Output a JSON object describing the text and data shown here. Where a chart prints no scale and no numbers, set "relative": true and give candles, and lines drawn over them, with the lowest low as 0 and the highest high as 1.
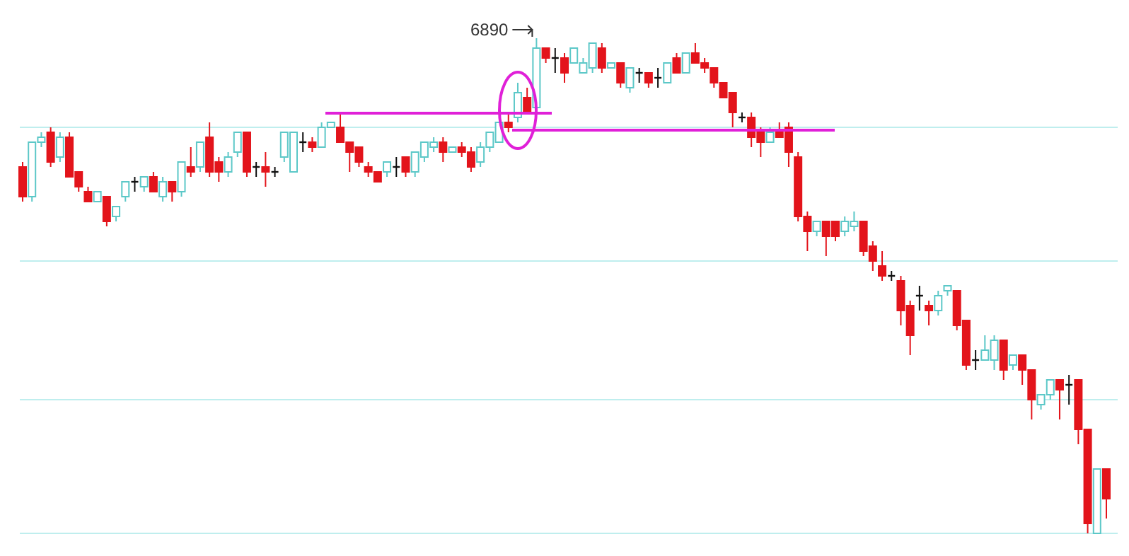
{
  "chart_data": {
    "type": "candlestick",
    "relative": true,
    "ref_lines": [
      {
        "axis": "y",
        "value": 0.82,
        "color": "#bfeeee"
      },
      {
        "axis": "y",
        "value": 0.55,
        "color": "#bfeeee"
      },
      {
        "axis": "y",
        "value": 0.27,
        "color": "#bfeeee"
      },
      {
        "axis": "y",
        "value": 0,
        "color": "#bfeeee"
      }
    ],
    "annotations": [
      "6890"
    ],
    "categories": [
      null,
      null,
      null,
      null,
      null,
      null,
      null,
      null,
      null,
      null,
      null,
      null,
      null,
      null,
      null,
      null,
      null,
      null,
      null,
      null,
      null,
      null,
      null,
      null,
      null,
      null,
      null,
      null,
      null,
      null,
      null,
      null,
      null,
      null,
      null,
      null,
      null,
      null,
      null,
      null,
      null,
      null,
      null,
      null,
      null,
      null,
      null,
      null,
      null,
      null,
      null,
      null,
      null,
      null,
      null,
      null,
      null,
      null,
      null,
      null,
      null,
      null,
      null,
      null,
      null,
      null,
      null,
      null,
      null,
      null,
      null,
      null,
      null,
      null,
      null,
      null,
      null,
      null,
      null,
      null,
      null,
      null,
      null,
      null,
      null,
      null,
      null,
      null,
      null,
      null,
      null,
      null,
      null,
      null,
      null,
      null,
      null,
      null,
      null,
      null,
      null,
      null,
      null,
      null,
      null,
      null,
      null,
      null,
      null,
      null,
      null,
      null,
      null,
      null,
      null,
      null,
      null
    ],
    "ohlc": [
      [
        0.74,
        0.75,
        0.67,
        0.68
      ],
      [
        0.68,
        0.79,
        0.67,
        0.79
      ],
      [
        0.79,
        0.81,
        0.78,
        0.8
      ],
      [
        0.81,
        0.82,
        0.74,
        0.75
      ],
      [
        0.76,
        0.81,
        0.75,
        0.8
      ],
      [
        0.8,
        0.81,
        0.72,
        0.72
      ],
      [
        0.73,
        0.73,
        0.69,
        0.7
      ],
      [
        0.69,
        0.7,
        0.67,
        0.67
      ],
      [
        0.67,
        0.69,
        0.67,
        0.69
      ],
      [
        0.68,
        0.68,
        0.62,
        0.63
      ],
      [
        0.64,
        0.66,
        0.63,
        0.66
      ],
      [
        0.68,
        0.71,
        0.67,
        0.71
      ],
      [
        0.71,
        0.72,
        0.69,
        0.71
      ],
      [
        0.7,
        0.72,
        0.69,
        0.72
      ],
      [
        0.72,
        0.73,
        0.69,
        0.69
      ],
      [
        0.68,
        0.72,
        0.67,
        0.71
      ],
      [
        0.71,
        0.71,
        0.67,
        0.69
      ],
      [
        0.69,
        0.75,
        0.68,
        0.75
      ],
      [
        0.74,
        0.78,
        0.72,
        0.73
      ],
      [
        0.74,
        0.79,
        0.73,
        0.79
      ],
      [
        0.8,
        0.83,
        0.72,
        0.73
      ],
      [
        0.75,
        0.76,
        0.71,
        0.73
      ],
      [
        0.73,
        0.77,
        0.72,
        0.76
      ],
      [
        0.77,
        0.81,
        0.76,
        0.81
      ],
      [
        0.81,
        0.81,
        0.72,
        0.73
      ],
      [
        0.74,
        0.75,
        0.72,
        0.74
      ],
      [
        0.74,
        0.77,
        0.7,
        0.73
      ],
      [
        0.73,
        0.74,
        0.72,
        0.73
      ],
      [
        0.76,
        0.81,
        0.75,
        0.81
      ],
      [
        0.73,
        0.81,
        0.73,
        0.81
      ],
      [
        0.79,
        0.81,
        0.77,
        0.79
      ],
      [
        0.79,
        0.8,
        0.77,
        0.78
      ],
      [
        0.78,
        0.83,
        0.78,
        0.82
      ],
      [
        0.82,
        0.83,
        0.82,
        0.83
      ],
      [
        0.82,
        0.85,
        0.79,
        0.79
      ],
      [
        0.79,
        0.79,
        0.73,
        0.77
      ],
      [
        0.78,
        0.78,
        0.74,
        0.75
      ],
      [
        0.74,
        0.75,
        0.72,
        0.73
      ],
      [
        0.73,
        0.73,
        0.71,
        0.71
      ],
      [
        0.73,
        0.75,
        0.72,
        0.75
      ],
      [
        0.74,
        0.76,
        0.72,
        0.74
      ],
      [
        0.76,
        0.76,
        0.72,
        0.73
      ],
      [
        0.73,
        0.77,
        0.72,
        0.77
      ],
      [
        0.76,
        0.79,
        0.75,
        0.79
      ],
      [
        0.78,
        0.8,
        0.77,
        0.79
      ],
      [
        0.79,
        0.8,
        0.75,
        0.77
      ],
      [
        0.77,
        0.78,
        0.77,
        0.78
      ],
      [
        0.78,
        0.79,
        0.76,
        0.77
      ],
      [
        0.77,
        0.78,
        0.73,
        0.74
      ],
      [
        0.75,
        0.79,
        0.74,
        0.78
      ],
      [
        0.78,
        0.81,
        0.77,
        0.81
      ],
      [
        0.79,
        0.83,
        0.79,
        0.83
      ],
      [
        0.83,
        0.85,
        0.81,
        0.82
      ],
      [
        0.84,
        0.91,
        0.83,
        0.89
      ],
      [
        0.88,
        0.9,
        0.85,
        0.85
      ],
      [
        0.86,
        1,
        0.85,
        0.98
      ],
      [
        0.98,
        0.98,
        0.95,
        0.96
      ],
      [
        0.96,
        0.98,
        0.93,
        0.96
      ],
      [
        0.96,
        0.97,
        0.91,
        0.93
      ],
      [
        0.95,
        0.98,
        0.95,
        0.98
      ],
      [
        0.93,
        0.96,
        0.93,
        0.95
      ],
      [
        0.94,
        0.99,
        0.93,
        0.99
      ],
      [
        0.98,
        0.99,
        0.93,
        0.94
      ],
      [
        0.94,
        0.95,
        0.94,
        0.95
      ],
      [
        0.95,
        0.95,
        0.9,
        0.91
      ],
      [
        0.9,
        0.94,
        0.89,
        0.94
      ],
      [
        0.93,
        0.94,
        0.91,
        0.93
      ],
      [
        0.93,
        0.93,
        0.9,
        0.91
      ],
      [
        0.92,
        0.94,
        0.9,
        0.92
      ],
      [
        0.91,
        0.95,
        0.91,
        0.95
      ],
      [
        0.96,
        0.97,
        0.93,
        0.93
      ],
      [
        0.93,
        0.97,
        0.93,
        0.97
      ],
      [
        0.97,
        0.99,
        0.95,
        0.95
      ],
      [
        0.95,
        0.96,
        0.93,
        0.94
      ],
      [
        0.94,
        0.94,
        0.9,
        0.91
      ],
      [
        0.91,
        0.91,
        0.88,
        0.88
      ],
      [
        0.89,
        0.89,
        0.82,
        0.85
      ],
      [
        0.84,
        0.85,
        0.83,
        0.84
      ],
      [
        0.84,
        0.85,
        0.78,
        0.8
      ],
      [
        0.81,
        0.82,
        0.76,
        0.79
      ],
      [
        0.79,
        0.82,
        0.79,
        0.81
      ],
      [
        0.81,
        0.83,
        0.8,
        0.8
      ],
      [
        0.82,
        0.83,
        0.74,
        0.77
      ],
      [
        0.76,
        0.77,
        0.63,
        0.64
      ],
      [
        0.64,
        0.65,
        0.57,
        0.61
      ],
      [
        0.61,
        0.63,
        0.6,
        0.63
      ],
      [
        0.63,
        0.63,
        0.56,
        0.6
      ],
      [
        0.63,
        0.63,
        0.59,
        0.6
      ],
      [
        0.61,
        0.64,
        0.6,
        0.63
      ],
      [
        0.62,
        0.65,
        0.61,
        0.63
      ],
      [
        0.63,
        0.63,
        0.56,
        0.57
      ],
      [
        0.58,
        0.59,
        0.53,
        0.55
      ],
      [
        0.54,
        0.57,
        0.51,
        0.52
      ],
      [
        0.52,
        0.53,
        0.51,
        0.52
      ],
      [
        0.51,
        0.52,
        0.42,
        0.45
      ],
      [
        0.46,
        0.47,
        0.36,
        0.4
      ],
      [
        0.48,
        0.5,
        0.45,
        0.48
      ],
      [
        0.46,
        0.47,
        0.42,
        0.45
      ],
      [
        0.45,
        0.49,
        0.44,
        0.48
      ],
      [
        0.49,
        0.5,
        0.48,
        0.5
      ],
      [
        0.49,
        0.49,
        0.41,
        0.42
      ],
      [
        0.43,
        0.43,
        0.33,
        0.34
      ],
      [
        0.35,
        0.37,
        0.33,
        0.35
      ],
      [
        0.35,
        0.4,
        0.35,
        0.37
      ],
      [
        0.35,
        0.4,
        0.33,
        0.39
      ],
      [
        0.39,
        0.39,
        0.31,
        0.33
      ],
      [
        0.34,
        0.36,
        0.33,
        0.36
      ],
      [
        0.36,
        0.36,
        0.3,
        0.33
      ],
      [
        0.33,
        0.33,
        0.23,
        0.27
      ],
      [
        0.26,
        0.28,
        0.25,
        0.28
      ],
      [
        0.28,
        0.31,
        0.27,
        0.31
      ],
      [
        0.31,
        0.31,
        0.23,
        0.29
      ],
      [
        0.3,
        0.32,
        0.26,
        0.3
      ],
      [
        0.31,
        0.31,
        0.18,
        0.21
      ],
      [
        0.21,
        0.21,
        0,
        0.02
      ],
      [
        0,
        0.13,
        0,
        0.13
      ],
      [
        0.13,
        0.13,
        0.03,
        0.07
      ]
    ],
    "colors": [
      "#e3141b",
      "#5cc8c8",
      "#5cc8c8",
      "#e3141b",
      "#5cc8c8",
      "#e3141b",
      "#e3141b",
      "#e3141b",
      "#5cc8c8",
      "#e3141b",
      "#5cc8c8",
      "#5cc8c8",
      "#111111",
      "#5cc8c8",
      "#e3141b",
      "#5cc8c8",
      "#e3141b",
      "#5cc8c8",
      "#e3141b",
      "#5cc8c8",
      "#e3141b",
      "#e3141b",
      "#5cc8c8",
      "#5cc8c8",
      "#e3141b",
      "#111111",
      "#e3141b",
      "#111111",
      "#5cc8c8",
      "#5cc8c8",
      "#111111",
      "#e3141b",
      "#5cc8c8",
      "#5cc8c8",
      "#e3141b",
      "#e3141b",
      "#e3141b",
      "#e3141b",
      "#e3141b",
      "#5cc8c8",
      "#111111",
      "#e3141b",
      "#5cc8c8",
      "#5cc8c8",
      "#5cc8c8",
      "#e3141b",
      "#5cc8c8",
      "#e3141b",
      "#e3141b",
      "#5cc8c8",
      "#5cc8c8",
      "#5cc8c8",
      "#e3141b",
      "#5cc8c8",
      "#e3141b",
      "#5cc8c8",
      "#e3141b",
      "#111111",
      "#e3141b",
      "#5cc8c8",
      "#5cc8c8",
      "#5cc8c8",
      "#e3141b",
      "#5cc8c8",
      "#e3141b",
      "#5cc8c8",
      "#111111",
      "#e3141b",
      "#111111",
      "#5cc8c8",
      "#e3141b",
      "#5cc8c8",
      "#e3141b",
      "#e3141b",
      "#e3141b",
      "#e3141b",
      "#e3141b",
      "#111111",
      "#e3141b",
      "#e3141b",
      "#5cc8c8",
      "#e3141b",
      "#e3141b",
      "#e3141b",
      "#e3141b",
      "#5cc8c8",
      "#e3141b",
      "#e3141b",
      "#5cc8c8",
      "#5cc8c8",
      "#e3141b",
      "#e3141b",
      "#e3141b",
      "#111111",
      "#e3141b",
      "#e3141b",
      "#111111",
      "#e3141b",
      "#5cc8c8",
      "#5cc8c8",
      "#e3141b",
      "#e3141b",
      "#111111",
      "#5cc8c8",
      "#5cc8c8",
      "#e3141b",
      "#5cc8c8",
      "#e3141b",
      "#e3141b",
      "#5cc8c8",
      "#5cc8c8",
      "#e3141b",
      "#111111",
      "#e3141b",
      "#e3141b",
      "#5cc8c8",
      "#e3141b"
    ]
  }
}
